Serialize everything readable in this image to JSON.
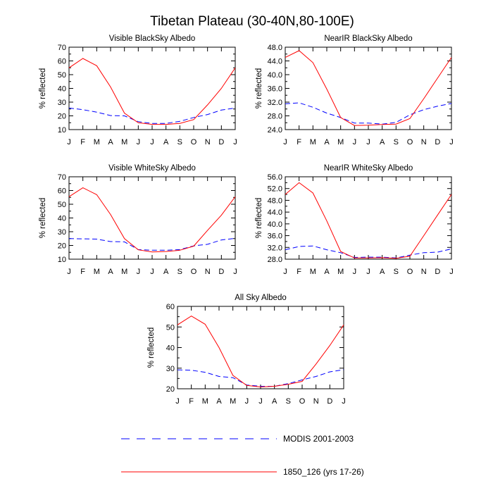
{
  "figure": {
    "title": "Tibetan Plateau (30-40N,80-100E)"
  },
  "legend": {
    "placement": "bottom-center",
    "entries": [
      {
        "label": "MODIS 2001-2003",
        "color": "#0000ff",
        "dash": "dashed"
      },
      {
        "label": "1850_126 (yrs 17-26)",
        "color": "#ff0000",
        "dash": "solid"
      }
    ]
  },
  "chart_data": [
    {
      "type": "line",
      "title": "Visible BlackSky Albedo",
      "ylabel": "% reflected",
      "xlabel": "",
      "categories": [
        "J",
        "F",
        "M",
        "A",
        "M",
        "J",
        "J",
        "A",
        "S",
        "O",
        "N",
        "D",
        "J"
      ],
      "ylim": [
        10,
        70
      ],
      "yticks": [
        10,
        20,
        30,
        40,
        50,
        60,
        70
      ],
      "ytick_labels": [
        "10",
        "20",
        "30",
        "40",
        "50",
        "60",
        "70"
      ],
      "grid": false,
      "series": [
        {
          "name": "MODIS 2001-2003",
          "color": "#0000ff",
          "dash": "dashed",
          "values": [
            25.7,
            24.5,
            22.7,
            20.2,
            20.0,
            15.8,
            14.5,
            14.5,
            16.0,
            18.8,
            21.0,
            24.2,
            25.7
          ]
        },
        {
          "name": "1850_126 (yrs 17-26)",
          "color": "#ff0000",
          "dash": "solid",
          "values": [
            55.0,
            61.8,
            56.5,
            41.0,
            22.0,
            15.0,
            13.8,
            13.8,
            14.5,
            17.3,
            28.0,
            40.0,
            55.0
          ]
        }
      ]
    },
    {
      "type": "line",
      "title": "NearIR BlackSky Albedo",
      "ylabel": "% reflected",
      "xlabel": "",
      "categories": [
        "J",
        "F",
        "M",
        "A",
        "M",
        "J",
        "J",
        "A",
        "S",
        "O",
        "N",
        "D",
        "J"
      ],
      "ylim": [
        24,
        48
      ],
      "yticks": [
        24,
        28,
        32,
        36,
        40,
        44,
        48
      ],
      "ytick_labels": [
        "24.0",
        "28.0",
        "32.0",
        "36.0",
        "40.0",
        "44.0",
        "48.0"
      ],
      "grid": false,
      "series": [
        {
          "name": "MODIS 2001-2003",
          "color": "#0000ff",
          "dash": "dashed",
          "values": [
            31.5,
            31.8,
            30.5,
            28.8,
            27.5,
            25.9,
            25.9,
            25.6,
            26.1,
            28.3,
            29.8,
            30.8,
            31.6
          ]
        },
        {
          "name": "1850_126 (yrs 17-26)",
          "color": "#ff0000",
          "dash": "solid",
          "values": [
            45.0,
            47.0,
            43.5,
            35.8,
            27.5,
            25.2,
            25.3,
            25.5,
            25.6,
            27.2,
            33.0,
            39.0,
            45.0
          ]
        }
      ]
    },
    {
      "type": "line",
      "title": "Visible WhiteSky Albedo",
      "ylabel": "% reflected",
      "xlabel": "",
      "categories": [
        "J",
        "F",
        "M",
        "A",
        "M",
        "J",
        "J",
        "A",
        "S",
        "O",
        "N",
        "D",
        "J"
      ],
      "ylim": [
        10,
        70
      ],
      "yticks": [
        10,
        20,
        30,
        40,
        50,
        60,
        70
      ],
      "ytick_labels": [
        "10",
        "20",
        "30",
        "40",
        "50",
        "60",
        "70"
      ],
      "grid": false,
      "series": [
        {
          "name": "MODIS 2001-2003",
          "color": "#0000ff",
          "dash": "dashed",
          "values": [
            25.0,
            24.8,
            24.6,
            22.8,
            22.6,
            17.0,
            16.5,
            16.5,
            17.0,
            19.7,
            20.8,
            24.0,
            25.2
          ]
        },
        {
          "name": "1850_126 (yrs 17-26)",
          "color": "#ff0000",
          "dash": "solid",
          "values": [
            55.5,
            62.0,
            57.0,
            42.5,
            25.0,
            16.8,
            15.3,
            15.6,
            16.5,
            19.5,
            31.0,
            42.0,
            55.5
          ]
        }
      ]
    },
    {
      "type": "line",
      "title": "NearIR WhiteSky Albedo",
      "ylabel": "% reflected",
      "xlabel": "",
      "categories": [
        "J",
        "F",
        "M",
        "A",
        "M",
        "J",
        "J",
        "A",
        "S",
        "O",
        "N",
        "D",
        "J"
      ],
      "ylim": [
        28,
        56
      ],
      "yticks": [
        28,
        32,
        36,
        40,
        44,
        48,
        52,
        56
      ],
      "ytick_labels": [
        "28.0",
        "32.0",
        "36.0",
        "40.0",
        "44.0",
        "48.0",
        "52.0",
        "56.0"
      ],
      "grid": false,
      "series": [
        {
          "name": "MODIS 2001-2003",
          "color": "#0000ff",
          "dash": "dashed",
          "values": [
            31.2,
            32.3,
            32.5,
            31.2,
            30.2,
            28.6,
            28.7,
            28.7,
            28.4,
            29.4,
            30.2,
            30.4,
            31.5
          ]
        },
        {
          "name": "1850_126 (yrs 17-26)",
          "color": "#ff0000",
          "dash": "solid",
          "values": [
            50.0,
            54.0,
            50.5,
            41.0,
            30.6,
            28.4,
            28.4,
            28.5,
            28.3,
            29.0,
            36.0,
            43.0,
            50.0
          ]
        }
      ]
    },
    {
      "type": "line",
      "title": "All Sky Albedo",
      "ylabel": "% reflected",
      "xlabel": "",
      "categories": [
        "J",
        "F",
        "M",
        "A",
        "M",
        "J",
        "J",
        "A",
        "S",
        "O",
        "N",
        "D",
        "J"
      ],
      "ylim": [
        20,
        60
      ],
      "yticks": [
        20,
        30,
        40,
        50,
        60
      ],
      "ytick_labels": [
        "20",
        "30",
        "40",
        "50",
        "60"
      ],
      "grid": false,
      "series": [
        {
          "name": "MODIS 2001-2003",
          "color": "#0000ff",
          "dash": "dashed",
          "values": [
            29.2,
            29.0,
            28.0,
            26.0,
            25.4,
            21.8,
            21.2,
            21.2,
            22.5,
            24.3,
            26.0,
            28.2,
            29.3
          ]
        },
        {
          "name": "1850_126 (yrs 17-26)",
          "color": "#ff0000",
          "dash": "solid",
          "values": [
            51.0,
            55.3,
            51.3,
            40.0,
            26.5,
            21.6,
            20.9,
            21.2,
            22.2,
            23.6,
            32.0,
            41.0,
            51.0
          ]
        }
      ]
    }
  ]
}
